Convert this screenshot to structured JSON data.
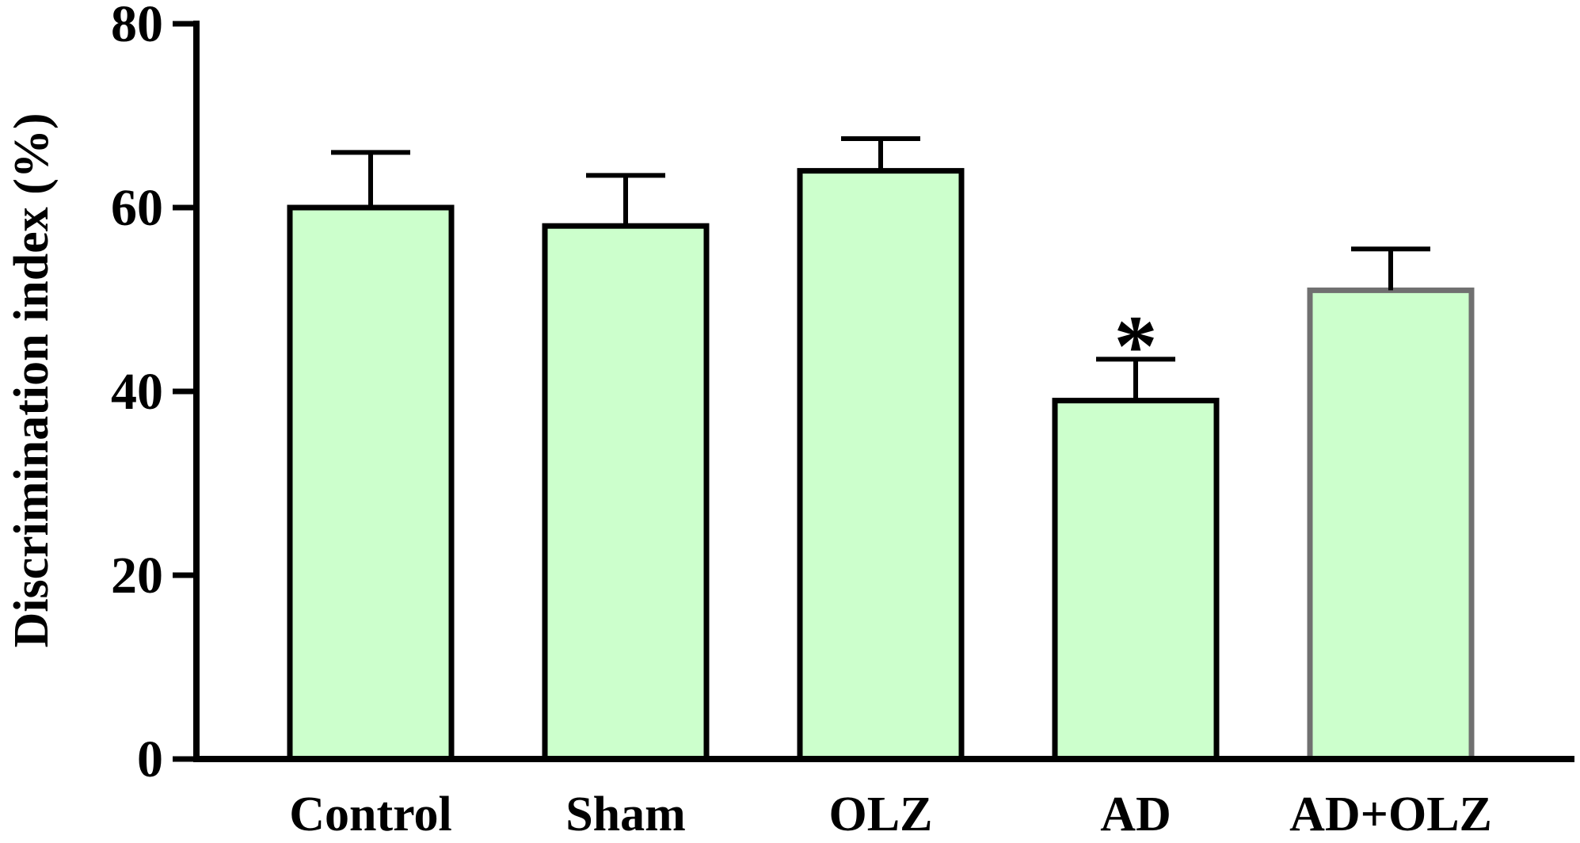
{
  "chart_data": {
    "type": "bar",
    "title": "",
    "xlabel": "",
    "ylabel": "Discrimination index (%)",
    "ylim": [
      0,
      80
    ],
    "yticks": [
      0,
      20,
      40,
      60,
      80
    ],
    "categories": [
      "Control",
      "Sham",
      "OLZ",
      "AD",
      "AD+OLZ"
    ],
    "values": [
      60,
      58,
      64,
      39,
      51
    ],
    "error_upper": [
      66,
      63.5,
      67.5,
      43.5,
      55.5
    ],
    "annotations": [
      {
        "category": "AD",
        "text": "*"
      }
    ],
    "colors": {
      "bar_fill": "#ccffcc",
      "bar_stroke": "#000000",
      "last_bar_stroke": "#707070",
      "axis": "#000000"
    },
    "grid": false,
    "legend": "none"
  }
}
